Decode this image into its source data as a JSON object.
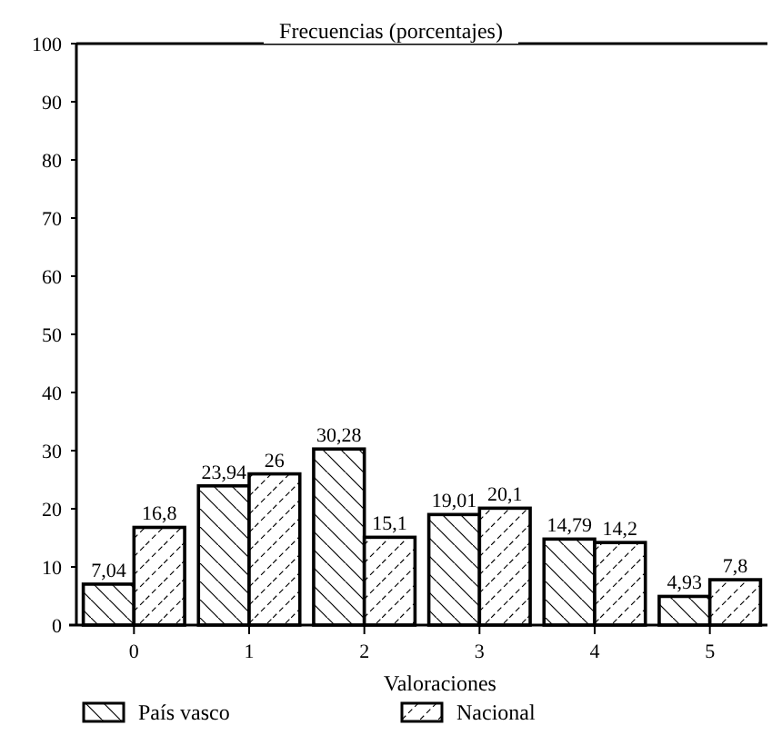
{
  "chart_data": {
    "type": "bar",
    "title": "Frecuencias (porcentajes)",
    "xlabel": "Valoraciones",
    "categories": [
      "0",
      "1",
      "2",
      "3",
      "4",
      "5"
    ],
    "series": [
      {
        "name": "País vasco",
        "color": "#000000",
        "values": [
          7.04,
          23.94,
          30.28,
          19.01,
          14.79,
          4.93
        ],
        "value_labels": [
          "7,04",
          "23,94",
          "30,28",
          "19,01",
          "14,79",
          "4,93"
        ]
      },
      {
        "name": "Nacional",
        "color": "#000000",
        "values": [
          16.8,
          26,
          15.1,
          20.1,
          14.2,
          7.8
        ],
        "value_labels": [
          "16,8",
          "26",
          "15,1",
          "20,1",
          "14,2",
          "7,8"
        ]
      }
    ],
    "ylim": [
      0,
      100
    ],
    "yticks": [
      0,
      10,
      20,
      30,
      40,
      50,
      60,
      70,
      80,
      90,
      100
    ],
    "grid": false,
    "legend": "bottom"
  }
}
